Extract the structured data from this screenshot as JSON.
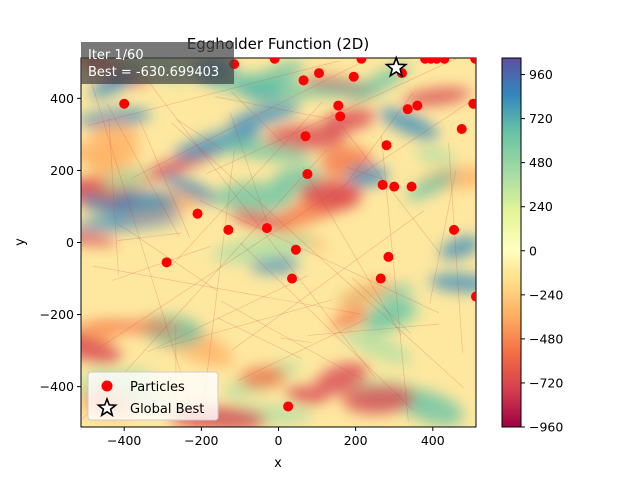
{
  "chart_data": {
    "type": "scatter",
    "title": "Eggholder Function (2D)",
    "xlabel": "x",
    "ylabel": "y",
    "xlim": [
      -512,
      512
    ],
    "ylim": [
      -512,
      512
    ],
    "x_ticks": [
      -400,
      -200,
      0,
      200,
      400
    ],
    "y_ticks": [
      -400,
      -200,
      0,
      200,
      400
    ],
    "info": {
      "iteration": "Iter 1/60",
      "best": "Best = -630.699403"
    },
    "colorbar": {
      "range": [
        -960,
        1050
      ],
      "ticks": [
        -960,
        -720,
        -480,
        -240,
        0,
        240,
        480,
        720,
        960
      ],
      "colormap": "Spectral"
    },
    "legend": {
      "placement": "lower-left",
      "entries": [
        "Particles",
        "Global Best"
      ]
    },
    "series": [
      {
        "name": "Particles",
        "color": "#ff0000",
        "points": [
          [
            -400,
            385
          ],
          [
            -290,
            -55
          ],
          [
            -210,
            80
          ],
          [
            -130,
            35
          ],
          [
            -115,
            495
          ],
          [
            -30,
            40
          ],
          [
            -10,
            510
          ],
          [
            25,
            -455
          ],
          [
            35,
            -100
          ],
          [
            45,
            -20
          ],
          [
            65,
            450
          ],
          [
            70,
            295
          ],
          [
            75,
            190
          ],
          [
            105,
            470
          ],
          [
            155,
            380
          ],
          [
            160,
            350
          ],
          [
            195,
            460
          ],
          [
            215,
            510
          ],
          [
            265,
            -100
          ],
          [
            270,
            160
          ],
          [
            280,
            270
          ],
          [
            285,
            -40
          ],
          [
            300,
            155
          ],
          [
            320,
            470
          ],
          [
            335,
            370
          ],
          [
            345,
            155
          ],
          [
            360,
            380
          ],
          [
            380,
            510
          ],
          [
            395,
            510
          ],
          [
            410,
            510
          ],
          [
            430,
            510
          ],
          [
            455,
            35
          ],
          [
            475,
            315
          ],
          [
            505,
            385
          ],
          [
            510,
            510
          ],
          [
            512,
            -150
          ]
        ]
      },
      {
        "name": "Global Best",
        "color": "#ffffff",
        "points": [
          [
            305,
            485
          ]
        ]
      }
    ]
  }
}
